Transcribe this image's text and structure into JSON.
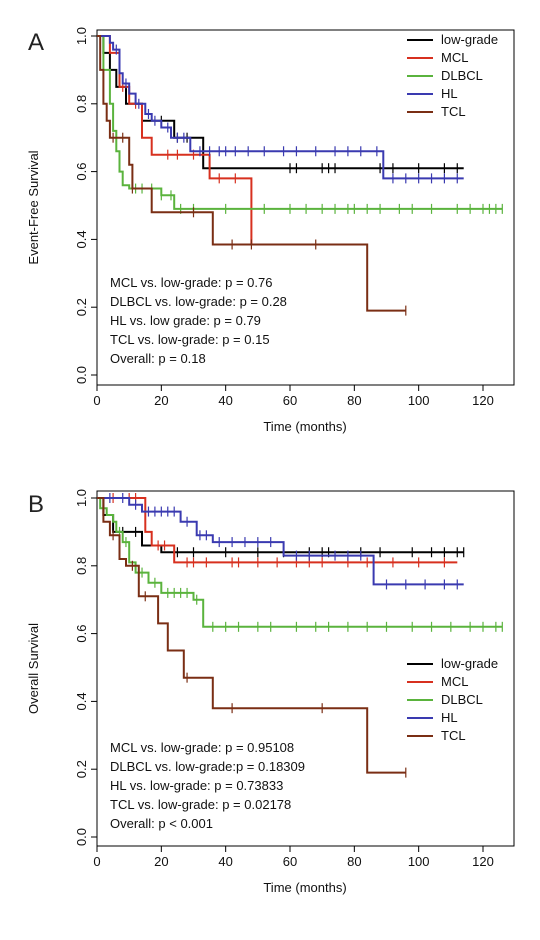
{
  "chart_data": [
    {
      "type": "line",
      "panel_label": "A",
      "xlabel": "Time (months)",
      "ylabel": "Event-Free Survival",
      "xlim": [
        0,
        130
      ],
      "ylim": [
        0,
        1.0
      ],
      "x_ticks": [
        0,
        20,
        40,
        60,
        80,
        100,
        120
      ],
      "y_ticks": [
        0.0,
        0.2,
        0.4,
        0.6,
        0.8,
        1.0
      ],
      "y_tick_labels": [
        "0.0",
        "0.2",
        "0.4",
        "0.6",
        "0.8",
        "1.0"
      ],
      "grid": false,
      "legend_position": "top-right",
      "series": [
        {
          "name": "low-grade",
          "color": "#000000",
          "steps": [
            [
              0,
              1.0
            ],
            [
              2,
              0.95
            ],
            [
              4,
              0.9
            ],
            [
              6,
              0.85
            ],
            [
              9,
              0.8
            ],
            [
              14,
              0.75
            ],
            [
              24,
              0.7
            ],
            [
              33,
              0.61
            ],
            [
              114,
              0.61
            ]
          ],
          "censor": [
            20,
            25,
            28,
            60,
            62,
            70,
            72,
            74,
            88,
            92,
            100,
            108,
            112
          ]
        },
        {
          "name": "MCL",
          "color": "#d7301f",
          "steps": [
            [
              0,
              1.0
            ],
            [
              4,
              0.95
            ],
            [
              7,
              0.85
            ],
            [
              10,
              0.8
            ],
            [
              14,
              0.7
            ],
            [
              17,
              0.65
            ],
            [
              35,
              0.58
            ],
            [
              48,
              0.385
            ],
            [
              48,
              0.385
            ]
          ],
          "censor": [
            8,
            12,
            22,
            25,
            30,
            38,
            43
          ]
        },
        {
          "name": "DLBCL",
          "color": "#5ab33d",
          "steps": [
            [
              0,
              1.0
            ],
            [
              2,
              0.9
            ],
            [
              4,
              0.8
            ],
            [
              5,
              0.72
            ],
            [
              6,
              0.66
            ],
            [
              7,
              0.6
            ],
            [
              8,
              0.56
            ],
            [
              10,
              0.55
            ],
            [
              20,
              0.53
            ],
            [
              24,
              0.49
            ],
            [
              126,
              0.49
            ]
          ],
          "censor": [
            12,
            14,
            17,
            20,
            23,
            26,
            30,
            40,
            52,
            60,
            65,
            70,
            74,
            78,
            80,
            84,
            88,
            94,
            98,
            104,
            112,
            116,
            120,
            122,
            124,
            126
          ]
        },
        {
          "name": "HL",
          "color": "#3a3ab0",
          "steps": [
            [
              0,
              1.0
            ],
            [
              4,
              0.98
            ],
            [
              5,
              0.96
            ],
            [
              7,
              0.89
            ],
            [
              8,
              0.86
            ],
            [
              10,
              0.83
            ],
            [
              12,
              0.8
            ],
            [
              15,
              0.77
            ],
            [
              17,
              0.75
            ],
            [
              20,
              0.73
            ],
            [
              23,
              0.7
            ],
            [
              29,
              0.66
            ],
            [
              89,
              0.58
            ],
            [
              114,
              0.58
            ]
          ],
          "censor": [
            6,
            9,
            13,
            16,
            18,
            22,
            25,
            27,
            32,
            35,
            38,
            40,
            43,
            47,
            52,
            58,
            62,
            68,
            74,
            78,
            82,
            87,
            92,
            96,
            100,
            104,
            108,
            112
          ]
        },
        {
          "name": "TCL",
          "color": "#7a2e14",
          "steps": [
            [
              0,
              1.0
            ],
            [
              1,
              0.9
            ],
            [
              2,
              0.8
            ],
            [
              3,
              0.75
            ],
            [
              4,
              0.7
            ],
            [
              10,
              0.62
            ],
            [
              11,
              0.55
            ],
            [
              17,
              0.48
            ],
            [
              36,
              0.385
            ],
            [
              84,
              0.19
            ],
            [
              96,
              0.19
            ]
          ],
          "censor": [
            5,
            8,
            11,
            30,
            42,
            48,
            68,
            96
          ]
        }
      ],
      "annotations": [
        "MCL vs. low-grade: p = 0.76",
        "DLBCL vs. low-grade: p = 0.28",
        "HL vs. low grade: p = 0.79",
        "TCL vs. low-grade: p = 0.15",
        "Overall: p = 0.18"
      ]
    },
    {
      "type": "line",
      "panel_label": "B",
      "xlabel": "Time (months)",
      "ylabel": "Overall Survival",
      "xlim": [
        0,
        130
      ],
      "ylim": [
        0,
        1.0
      ],
      "x_ticks": [
        0,
        20,
        40,
        60,
        80,
        100,
        120
      ],
      "y_ticks": [
        0.0,
        0.2,
        0.4,
        0.6,
        0.8,
        1.0
      ],
      "y_tick_labels": [
        "0.0",
        "0.2",
        "0.4",
        "0.6",
        "0.8",
        "1.0"
      ],
      "grid": false,
      "legend_position": "center-right",
      "series": [
        {
          "name": "low-grade",
          "color": "#000000",
          "steps": [
            [
              0,
              1.0
            ],
            [
              2,
              0.95
            ],
            [
              5,
              0.9
            ],
            [
              14,
              0.86
            ],
            [
              20,
              0.84
            ],
            [
              114,
              0.84
            ]
          ],
          "censor": [
            8,
            12,
            25,
            30,
            40,
            50,
            58,
            66,
            70,
            72,
            82,
            88,
            98,
            104,
            108,
            112,
            114
          ]
        },
        {
          "name": "MCL",
          "color": "#d7301f",
          "steps": [
            [
              0,
              1.0
            ],
            [
              15,
              0.9
            ],
            [
              17,
              0.86
            ],
            [
              24,
              0.81
            ],
            [
              112,
              0.81
            ]
          ],
          "censor": [
            5,
            10,
            12,
            19,
            21,
            28,
            30,
            34,
            42,
            44,
            50,
            56,
            62,
            66,
            70,
            78,
            84,
            92,
            100,
            108
          ]
        },
        {
          "name": "DLBCL",
          "color": "#5ab33d",
          "steps": [
            [
              0,
              1.0
            ],
            [
              1,
              0.97
            ],
            [
              3,
              0.95
            ],
            [
              5,
              0.93
            ],
            [
              6,
              0.9
            ],
            [
              8,
              0.87
            ],
            [
              10,
              0.81
            ],
            [
              12,
              0.78
            ],
            [
              16,
              0.75
            ],
            [
              20,
              0.72
            ],
            [
              30,
              0.7
            ],
            [
              33,
              0.62
            ],
            [
              126,
              0.62
            ]
          ],
          "censor": [
            7,
            9,
            14,
            18,
            22,
            24,
            26,
            28,
            31,
            36,
            40,
            44,
            50,
            54,
            62,
            68,
            72,
            78,
            84,
            90,
            98,
            104,
            110,
            116,
            120,
            124,
            126
          ]
        },
        {
          "name": "HL",
          "color": "#3a3ab0",
          "steps": [
            [
              0,
              1.0
            ],
            [
              10,
              0.98
            ],
            [
              14,
              0.96
            ],
            [
              26,
              0.93
            ],
            [
              31,
              0.89
            ],
            [
              36,
              0.87
            ],
            [
              58,
              0.83
            ],
            [
              84,
              0.83
            ],
            [
              86,
              0.745
            ],
            [
              114,
              0.745
            ]
          ],
          "censor": [
            4,
            8,
            12,
            16,
            18,
            20,
            22,
            24,
            28,
            32,
            34,
            38,
            42,
            46,
            50,
            54,
            62,
            66,
            74,
            78,
            82,
            90,
            96,
            102,
            108,
            112
          ]
        },
        {
          "name": "TCL",
          "color": "#7a2e14",
          "steps": [
            [
              0,
              1.0
            ],
            [
              2,
              0.93
            ],
            [
              4,
              0.89
            ],
            [
              7,
              0.82
            ],
            [
              9,
              0.8
            ],
            [
              13,
              0.71
            ],
            [
              19,
              0.63
            ],
            [
              22,
              0.55
            ],
            [
              27,
              0.47
            ],
            [
              36,
              0.38
            ],
            [
              84,
              0.19
            ],
            [
              96,
              0.19
            ]
          ],
          "censor": [
            5,
            11,
            15,
            28,
            42,
            70,
            96
          ]
        }
      ],
      "annotations": [
        "MCL vs. low-grade: p = 0.95108",
        "DLBCL vs. low-grade:p = 0.18309",
        "HL vs. low-grade: p = 0.73833",
        "TCL vs. low-grade: p = 0.02178",
        "Overall: p < 0.001"
      ]
    }
  ]
}
